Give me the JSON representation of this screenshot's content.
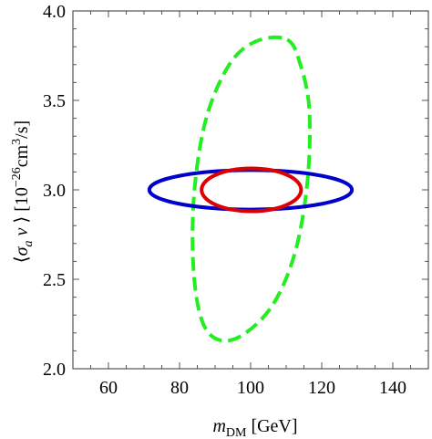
{
  "chart_data": {
    "type": "scatter",
    "title": "",
    "xlabel": "m_DM [GeV]",
    "ylabel": "⟨σ_a v⟩ [10^-26 cm^3/s]",
    "xlim": [
      50,
      150
    ],
    "ylim": [
      2.0,
      4.0
    ],
    "x_major_ticks": [
      60,
      80,
      100,
      120,
      140
    ],
    "y_major_ticks": [
      2.0,
      2.5,
      3.0,
      3.5,
      4.0
    ],
    "x_tick_labels": [
      "60",
      "80",
      "100",
      "120",
      "140"
    ],
    "y_tick_labels": [
      "2.0",
      "2.5",
      "3.0",
      "3.5",
      "4.0"
    ],
    "grid": false,
    "legend": "none",
    "series": [
      {
        "shape": "ellipse",
        "color": "#22ee22",
        "style": "dashed",
        "outline_points": [
          [
            110.3,
            3.84
          ],
          [
            114.0,
            3.7
          ],
          [
            116.5,
            3.45
          ],
          [
            116.0,
            3.05
          ],
          [
            112.5,
            2.65
          ],
          [
            106.0,
            2.35
          ],
          [
            97.0,
            2.18
          ],
          [
            90.0,
            2.17
          ],
          [
            85.8,
            2.3
          ],
          [
            83.8,
            2.6
          ],
          [
            84.2,
            3.0
          ],
          [
            87.5,
            3.4
          ],
          [
            94.0,
            3.7
          ],
          [
            101.5,
            3.83
          ],
          [
            110.3,
            3.84
          ]
        ]
      },
      {
        "shape": "ellipse",
        "color": "#0000cc",
        "style": "solid",
        "center": [
          100.0,
          3.0
        ],
        "x_halfwidth": 28.5,
        "y_halfheight": 0.11
      },
      {
        "shape": "ellipse",
        "color": "#dd0000",
        "style": "solid",
        "center": [
          100.2,
          3.0
        ],
        "x_halfwidth": 14.0,
        "y_halfheight": 0.12
      }
    ]
  }
}
